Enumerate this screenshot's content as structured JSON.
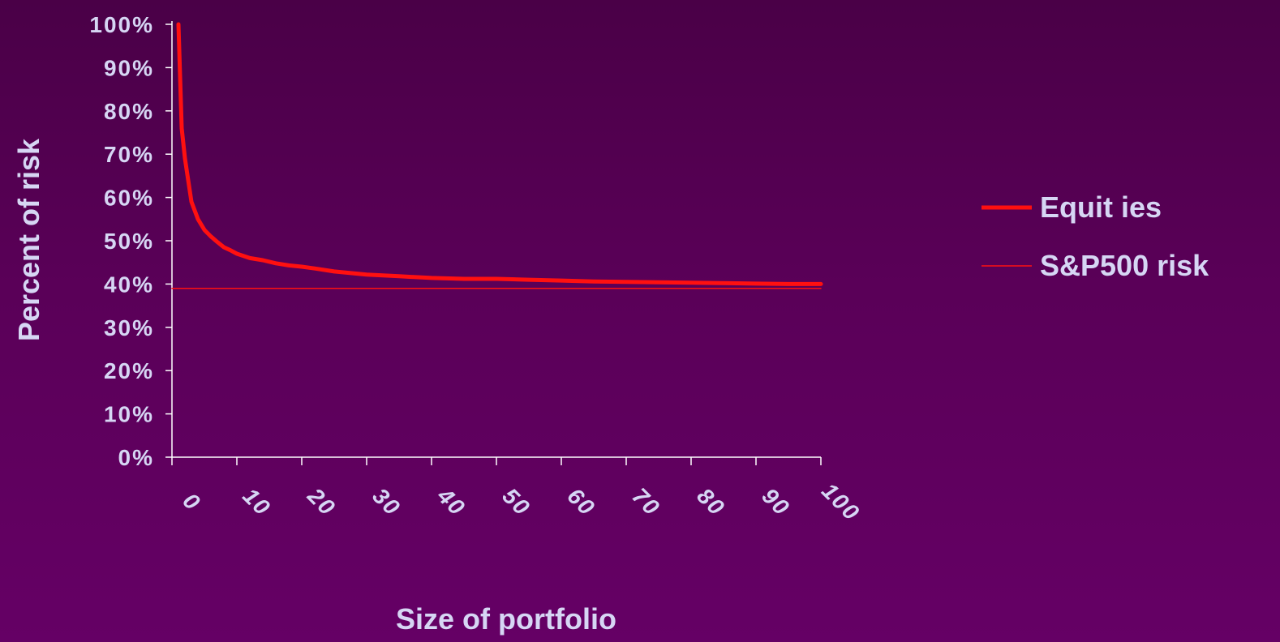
{
  "chart_data": {
    "type": "line",
    "title": "",
    "xlabel": "Size of portfolio",
    "ylabel": "Percent of risk",
    "xlim": [
      0,
      100
    ],
    "ylim": [
      0,
      1
    ],
    "x_ticks": [
      "0",
      "10",
      "20",
      "30",
      "40",
      "50",
      "60",
      "70",
      "80",
      "90",
      "100"
    ],
    "y_ticks": [
      "0%",
      "10%",
      "20%",
      "30%",
      "40%",
      "50%",
      "60%",
      "70%",
      "80%",
      "90%",
      "100%"
    ],
    "grid": false,
    "legend_position": "right",
    "series": [
      {
        "name": "Equit ies",
        "color": "#ff1010",
        "x": [
          1,
          1.5,
          2,
          2.5,
          3,
          4,
          5,
          6,
          7,
          8,
          9,
          10,
          12,
          14,
          16,
          18,
          20,
          22,
          25,
          30,
          35,
          40,
          45,
          50,
          55,
          60,
          65,
          70,
          75,
          80,
          85,
          90,
          95,
          100
        ],
        "y": [
          1.0,
          0.76,
          0.69,
          0.64,
          0.59,
          0.55,
          0.525,
          0.51,
          0.497,
          0.485,
          0.478,
          0.47,
          0.46,
          0.455,
          0.448,
          0.443,
          0.44,
          0.436,
          0.429,
          0.422,
          0.418,
          0.414,
          0.412,
          0.412,
          0.41,
          0.408,
          0.406,
          0.405,
          0.404,
          0.403,
          0.402,
          0.401,
          0.4,
          0.4
        ]
      },
      {
        "name": "S&P500 risk",
        "color": "#ff1010",
        "x": [
          0,
          100
        ],
        "y": [
          0.39,
          0.39
        ]
      }
    ]
  }
}
